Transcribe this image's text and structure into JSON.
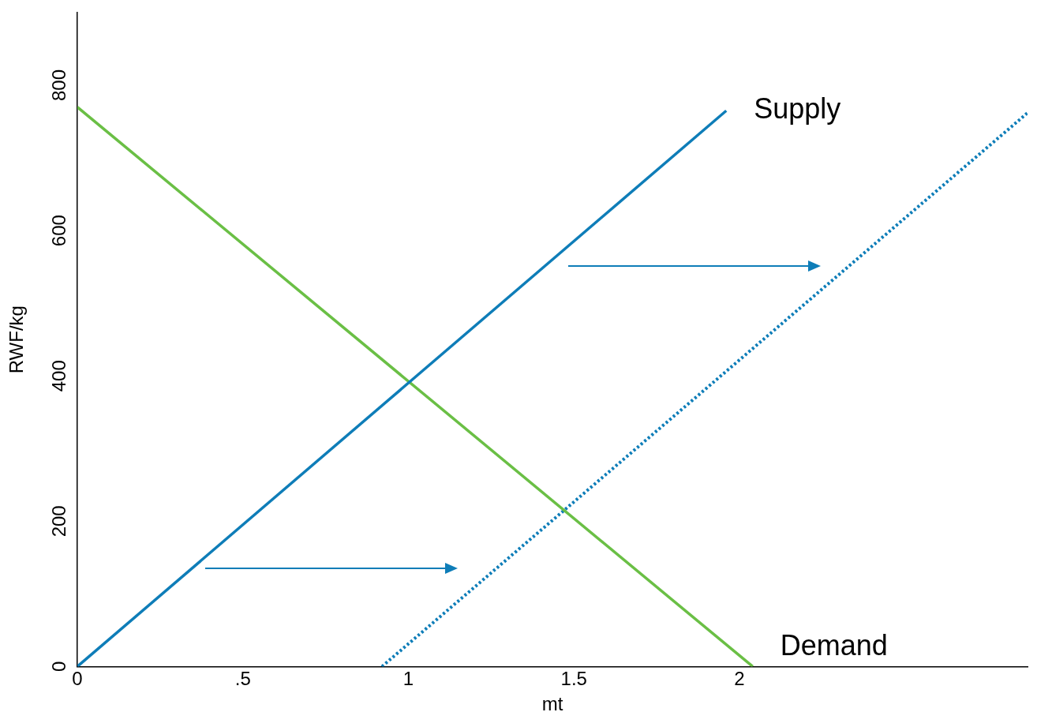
{
  "chart_data": {
    "type": "line",
    "xlabel": "mt",
    "ylabel": "RWF/kg",
    "xlim": [
      0,
      2.87
    ],
    "ylim": [
      0,
      900
    ],
    "xticks": [
      0,
      {
        "value": 0.5,
        "label": ".5"
      },
      1,
      1.5,
      2
    ],
    "yticks": [
      0,
      200,
      400,
      600,
      800
    ],
    "grid": false,
    "legend": false,
    "marker": "none",
    "series": [
      {
        "name": "Supply",
        "color": "#0e7db8",
        "x": [
          0,
          1.96
        ],
        "values": [
          0,
          765
        ],
        "line_style": "solid"
      },
      {
        "name": "Demand",
        "color": "#6abf45",
        "x": [
          0,
          2.04
        ],
        "values": [
          770,
          0
        ],
        "line_style": "solid"
      },
      {
        "color": "#0e7db8",
        "x": [
          0.92,
          2.87
        ],
        "values": [
          0,
          762
        ],
        "line_style": "dotted"
      }
    ]
  }
}
